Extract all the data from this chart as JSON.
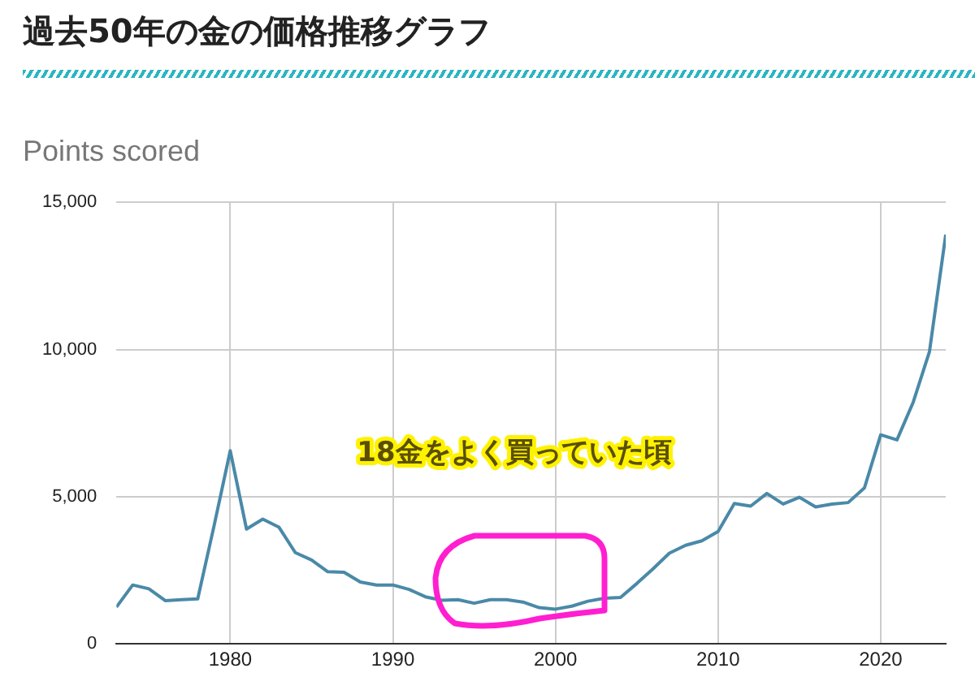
{
  "chart_data": {
    "type": "line",
    "title": "過去50年の金の価格推移グラフ",
    "subtitle": "Points scored",
    "x": [
      1973,
      1974,
      1975,
      1976,
      1977,
      1978,
      1979,
      1980,
      1981,
      1982,
      1983,
      1984,
      1985,
      1986,
      1987,
      1988,
      1989,
      1990,
      1991,
      1992,
      1993,
      1994,
      1995,
      1996,
      1997,
      1998,
      1999,
      2000,
      2001,
      2002,
      2003,
      2004,
      2005,
      2006,
      2007,
      2008,
      2009,
      2010,
      2011,
      2012,
      2013,
      2014,
      2015,
      2016,
      2017,
      2018,
      2019,
      2020,
      2021,
      2022,
      2023,
      2024
    ],
    "series": [
      {
        "color": "#4a89a8",
        "values": [
          1250,
          2000,
          1870,
          1470,
          1500,
          1530,
          4000,
          6560,
          3900,
          4240,
          3960,
          3100,
          2850,
          2450,
          2430,
          2100,
          2000,
          2000,
          1850,
          1600,
          1480,
          1500,
          1380,
          1500,
          1500,
          1420,
          1230,
          1180,
          1280,
          1450,
          1550,
          1580,
          2050,
          2550,
          3080,
          3350,
          3500,
          3820,
          4770,
          4680,
          5110,
          4750,
          4980,
          4650,
          4750,
          4800,
          5300,
          7100,
          6930,
          8210,
          9930,
          13900
        ]
      }
    ],
    "xlim": [
      1973,
      2024
    ],
    "xticks": [
      1980,
      1990,
      2000,
      2010,
      2020
    ],
    "ylim": [
      0,
      15000
    ],
    "yticks": [
      {
        "value": 0,
        "label": "0"
      },
      {
        "value": 5000,
        "label": "5,000"
      },
      {
        "value": 10000,
        "label": "10,000"
      },
      {
        "value": 15000,
        "label": "15,000"
      }
    ],
    "grid": true,
    "legend": false,
    "marker": "none",
    "line_style": "solid",
    "annotations": [
      "18金をよく買っていた頃"
    ]
  }
}
